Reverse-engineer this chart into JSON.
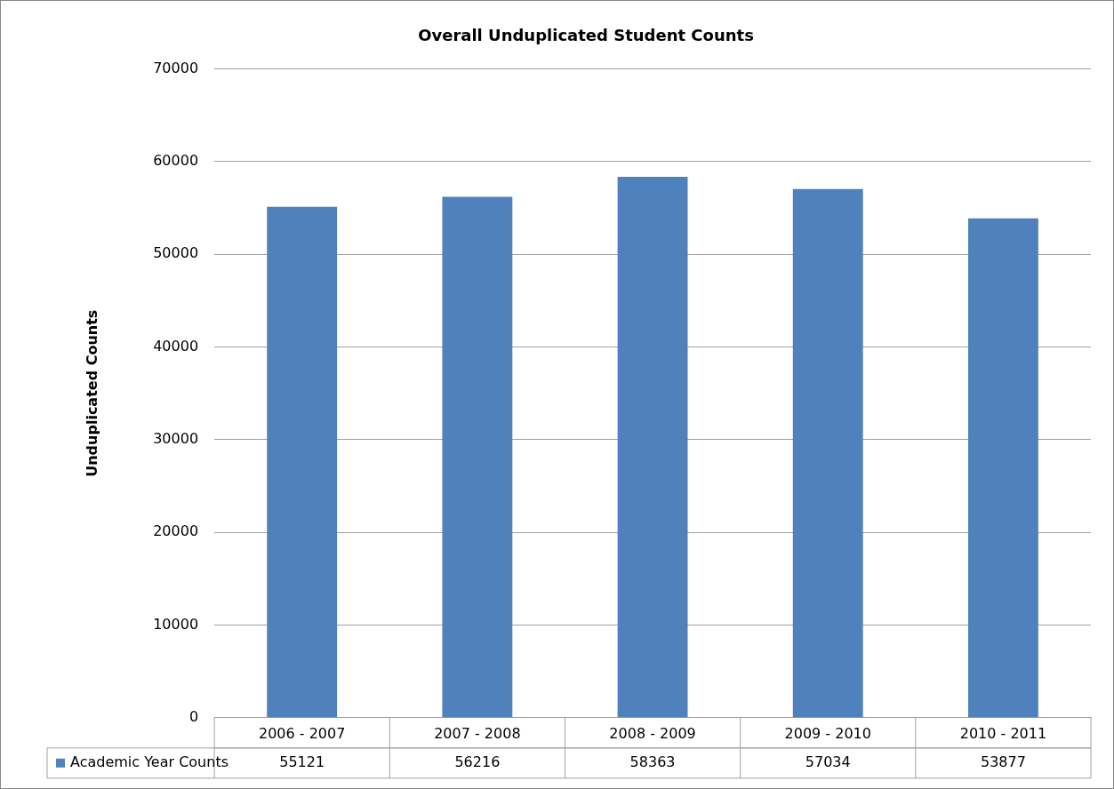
{
  "chart_data": {
    "type": "bar",
    "title": "Overall Unduplicated Student Counts",
    "ylabel": "Unduplicated Counts",
    "categories": [
      "2006 - 2007",
      "2007 - 2008",
      "2008 - 2009",
      "2009 - 2010",
      "2010 - 2011"
    ],
    "series": [
      {
        "name": "Academic Year Counts",
        "color": "#4f81bd",
        "values": [
          55121,
          56216,
          58363,
          57034,
          53877
        ]
      }
    ],
    "ylim": [
      0,
      70000
    ],
    "yticks": [
      0,
      10000,
      20000,
      30000,
      40000,
      50000,
      60000,
      70000
    ],
    "grid": "y",
    "legend": "bottom left",
    "data_labels": true
  }
}
